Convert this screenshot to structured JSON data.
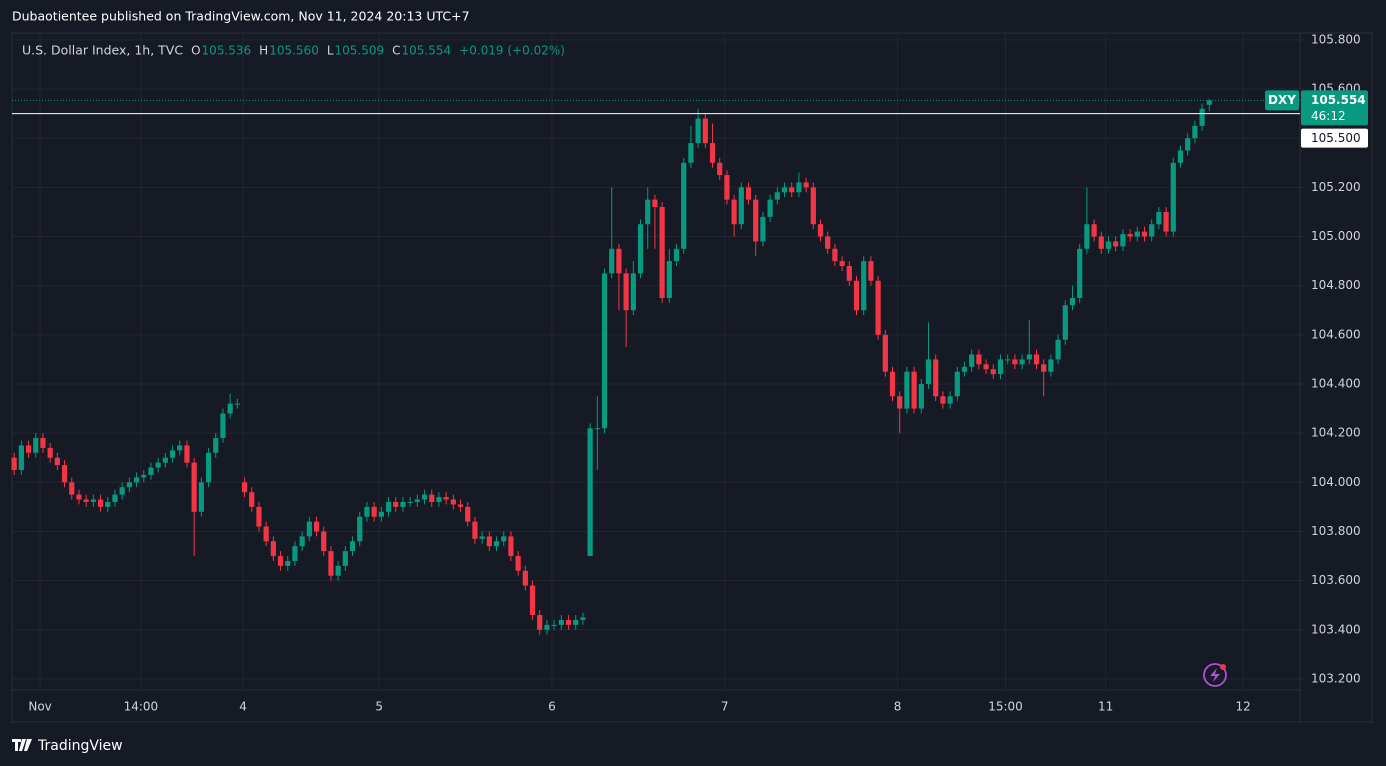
{
  "header": "Dubaotientee published on TradingView.com, Nov 11, 2024 20:13 UTC+7",
  "footer": "TradingView",
  "chart_data": {
    "type": "candlestick",
    "legend": {
      "title": "U.S. Dollar Index, 1h, TVC",
      "o_label": "O",
      "open": "105.536",
      "h_label": "H",
      "high": "105.560",
      "l_label": "L",
      "low": "105.509",
      "c_label": "C",
      "close": "105.554",
      "change": "+0.019 (+0.02%)"
    },
    "up_color": "#089981",
    "down_color": "#f23645",
    "grid": true,
    "ylim": [
      103.155,
      105.828
    ],
    "yticks": [
      {
        "value": 103.2,
        "label": "103.200"
      },
      {
        "value": 103.4,
        "label": "103.400"
      },
      {
        "value": 103.6,
        "label": "103.600"
      },
      {
        "value": 103.8,
        "label": "103.800"
      },
      {
        "value": 104.0,
        "label": "104.000"
      },
      {
        "value": 104.2,
        "label": "104.200"
      },
      {
        "value": 104.4,
        "label": "104.400"
      },
      {
        "value": 104.6,
        "label": "104.600"
      },
      {
        "value": 104.8,
        "label": "104.800"
      },
      {
        "value": 105.0,
        "label": "105.000"
      },
      {
        "value": 105.2,
        "label": "105.200"
      },
      {
        "value": 105.4,
        "label": "105.400"
      },
      {
        "value": 105.6,
        "label": "105.600"
      },
      {
        "value": 105.8,
        "label": "105.800"
      }
    ],
    "xlim": [
      -0.3,
      178.6
    ],
    "xticks": [
      {
        "value": 3.6,
        "label": "Nov"
      },
      {
        "value": 17.6,
        "label": "14:00"
      },
      {
        "value": 31.8,
        "label": "4"
      },
      {
        "value": 50.7,
        "label": "5"
      },
      {
        "value": 74.7,
        "label": "6"
      },
      {
        "value": 98.7,
        "label": "7"
      },
      {
        "value": 122.7,
        "label": "8"
      },
      {
        "value": 137.7,
        "label": "15:00"
      },
      {
        "value": 151.6,
        "label": "11"
      },
      {
        "value": 170.7,
        "label": "12"
      }
    ],
    "reference_line": {
      "value": 105.5,
      "label": "105.500"
    },
    "last_price": {
      "symbol": "DXY",
      "label": "105.554",
      "countdown": "46:12"
    },
    "candles": [
      [
        104.1,
        104.12,
        104.03,
        104.05
      ],
      [
        104.05,
        104.17,
        104.03,
        104.15
      ],
      [
        104.15,
        104.17,
        104.1,
        104.12
      ],
      [
        104.12,
        104.2,
        104.1,
        104.18
      ],
      [
        104.18,
        104.2,
        104.12,
        104.14
      ],
      [
        104.14,
        104.16,
        104.08,
        104.1
      ],
      [
        104.1,
        104.12,
        104.05,
        104.07
      ],
      [
        104.07,
        104.09,
        103.98,
        104.0
      ],
      [
        104.0,
        104.02,
        103.93,
        103.95
      ],
      [
        103.95,
        103.97,
        103.91,
        103.93
      ],
      [
        103.93,
        103.95,
        103.9,
        103.92
      ],
      [
        103.92,
        103.95,
        103.9,
        103.93
      ],
      [
        103.93,
        103.95,
        103.88,
        103.9
      ],
      [
        103.9,
        103.94,
        103.88,
        103.92
      ],
      [
        103.92,
        103.97,
        103.9,
        103.95
      ],
      [
        103.95,
        104.0,
        103.93,
        103.98
      ],
      [
        103.98,
        104.02,
        103.96,
        104.0
      ],
      [
        104.0,
        104.04,
        103.98,
        104.02
      ],
      [
        104.02,
        104.05,
        104.0,
        104.03
      ],
      [
        104.03,
        104.08,
        104.01,
        104.06
      ],
      [
        104.06,
        104.1,
        104.04,
        104.08
      ],
      [
        104.08,
        104.12,
        104.06,
        104.1
      ],
      [
        104.1,
        104.15,
        104.08,
        104.13
      ],
      [
        104.13,
        104.17,
        104.11,
        104.15
      ],
      [
        104.15,
        104.17,
        104.06,
        104.08
      ],
      [
        104.08,
        104.1,
        103.7,
        103.88
      ],
      [
        103.88,
        104.02,
        103.86,
        104.0
      ],
      [
        104.0,
        104.14,
        103.98,
        104.12
      ],
      [
        104.12,
        104.2,
        104.1,
        104.18
      ],
      [
        104.18,
        104.3,
        104.16,
        104.28
      ],
      [
        104.28,
        104.36,
        104.26,
        104.32
      ],
      [
        104.32,
        104.34,
        104.3,
        104.32
      ],
      [
        104.0,
        104.02,
        103.94,
        103.96
      ],
      [
        103.96,
        103.98,
        103.88,
        103.9
      ],
      [
        103.9,
        103.92,
        103.8,
        103.82
      ],
      [
        103.82,
        103.84,
        103.74,
        103.76
      ],
      [
        103.76,
        103.78,
        103.68,
        103.7
      ],
      [
        103.7,
        103.72,
        103.64,
        103.66
      ],
      [
        103.66,
        103.7,
        103.64,
        103.68
      ],
      [
        103.68,
        103.76,
        103.66,
        103.74
      ],
      [
        103.74,
        103.8,
        103.72,
        103.78
      ],
      [
        103.78,
        103.86,
        103.76,
        103.84
      ],
      [
        103.84,
        103.86,
        103.78,
        103.8
      ],
      [
        103.8,
        103.82,
        103.7,
        103.72
      ],
      [
        103.72,
        103.74,
        103.6,
        103.62
      ],
      [
        103.62,
        103.68,
        103.6,
        103.66
      ],
      [
        103.66,
        103.74,
        103.64,
        103.72
      ],
      [
        103.72,
        103.78,
        103.7,
        103.76
      ],
      [
        103.76,
        103.88,
        103.74,
        103.86
      ],
      [
        103.86,
        103.92,
        103.84,
        103.9
      ],
      [
        103.9,
        103.92,
        103.84,
        103.86
      ],
      [
        103.86,
        103.9,
        103.84,
        103.88
      ],
      [
        103.88,
        103.94,
        103.86,
        103.92
      ],
      [
        103.92,
        103.94,
        103.88,
        103.9
      ],
      [
        103.9,
        103.94,
        103.88,
        103.92
      ],
      [
        103.92,
        103.94,
        103.9,
        103.92
      ],
      [
        103.92,
        103.95,
        103.9,
        103.93
      ],
      [
        103.93,
        103.97,
        103.91,
        103.95
      ],
      [
        103.95,
        103.97,
        103.9,
        103.92
      ],
      [
        103.92,
        103.96,
        103.9,
        103.94
      ],
      [
        103.94,
        103.96,
        103.91,
        103.93
      ],
      [
        103.93,
        103.95,
        103.89,
        103.91
      ],
      [
        103.91,
        103.93,
        103.88,
        103.9
      ],
      [
        103.9,
        103.92,
        103.82,
        103.84
      ],
      [
        103.84,
        103.86,
        103.75,
        103.77
      ],
      [
        103.77,
        103.8,
        103.75,
        103.78
      ],
      [
        103.78,
        103.8,
        103.72,
        103.74
      ],
      [
        103.74,
        103.78,
        103.72,
        103.76
      ],
      [
        103.76,
        103.8,
        103.74,
        103.78
      ],
      [
        103.78,
        103.8,
        103.68,
        103.7
      ],
      [
        103.7,
        103.72,
        103.62,
        103.64
      ],
      [
        103.64,
        103.66,
        103.56,
        103.58
      ],
      [
        103.58,
        103.6,
        103.44,
        103.46
      ],
      [
        103.46,
        103.48,
        103.38,
        103.4
      ],
      [
        103.4,
        103.44,
        103.38,
        103.42
      ],
      [
        103.42,
        103.44,
        103.4,
        103.42
      ],
      [
        103.42,
        103.46,
        103.4,
        103.44
      ],
      [
        103.44,
        103.46,
        103.4,
        103.42
      ],
      [
        103.42,
        103.46,
        103.4,
        103.44
      ],
      [
        103.44,
        103.47,
        103.42,
        103.45
      ],
      [
        103.7,
        104.24,
        103.7,
        104.22
      ],
      [
        104.22,
        104.35,
        104.05,
        104.22
      ],
      [
        104.22,
        104.87,
        104.2,
        104.85
      ],
      [
        104.85,
        105.2,
        104.83,
        104.95
      ],
      [
        104.95,
        104.97,
        104.7,
        104.85
      ],
      [
        104.85,
        104.87,
        104.55,
        104.7
      ],
      [
        104.7,
        104.9,
        104.68,
        104.85
      ],
      [
        104.85,
        105.07,
        104.83,
        105.05
      ],
      [
        105.05,
        105.2,
        104.95,
        105.15
      ],
      [
        105.15,
        105.17,
        104.95,
        105.12
      ],
      [
        105.12,
        105.14,
        104.73,
        104.75
      ],
      [
        104.75,
        104.95,
        104.73,
        104.9
      ],
      [
        104.9,
        104.97,
        104.88,
        104.95
      ],
      [
        104.95,
        105.32,
        104.93,
        105.3
      ],
      [
        105.3,
        105.45,
        105.28,
        105.38
      ],
      [
        105.38,
        105.52,
        105.36,
        105.48
      ],
      [
        105.48,
        105.5,
        105.36,
        105.38
      ],
      [
        105.38,
        105.46,
        105.28,
        105.3
      ],
      [
        105.3,
        105.32,
        105.23,
        105.25
      ],
      [
        105.25,
        105.27,
        105.13,
        105.15
      ],
      [
        105.15,
        105.17,
        105.0,
        105.05
      ],
      [
        105.05,
        105.22,
        105.03,
        105.2
      ],
      [
        105.2,
        105.22,
        105.13,
        105.15
      ],
      [
        105.15,
        105.17,
        104.92,
        104.98
      ],
      [
        104.98,
        105.1,
        104.96,
        105.08
      ],
      [
        105.08,
        105.17,
        105.06,
        105.15
      ],
      [
        105.15,
        105.2,
        105.13,
        105.18
      ],
      [
        105.18,
        105.22,
        105.16,
        105.2
      ],
      [
        105.2,
        105.22,
        105.16,
        105.18
      ],
      [
        105.18,
        105.26,
        105.16,
        105.22
      ],
      [
        105.22,
        105.24,
        105.18,
        105.2
      ],
      [
        105.2,
        105.22,
        105.03,
        105.05
      ],
      [
        105.05,
        105.07,
        104.98,
        105.0
      ],
      [
        105.0,
        105.02,
        104.93,
        104.95
      ],
      [
        104.95,
        104.97,
        104.88,
        104.9
      ],
      [
        104.9,
        104.92,
        104.86,
        104.88
      ],
      [
        104.88,
        104.9,
        104.8,
        104.82
      ],
      [
        104.82,
        104.84,
        104.68,
        104.7
      ],
      [
        104.7,
        104.92,
        104.68,
        104.9
      ],
      [
        104.9,
        104.92,
        104.8,
        104.82
      ],
      [
        104.82,
        104.84,
        104.58,
        104.6
      ],
      [
        104.6,
        104.62,
        104.43,
        104.45
      ],
      [
        104.45,
        104.47,
        104.33,
        104.35
      ],
      [
        104.35,
        104.37,
        104.2,
        104.3
      ],
      [
        104.3,
        104.47,
        104.28,
        104.45
      ],
      [
        104.45,
        104.47,
        104.28,
        104.3
      ],
      [
        104.3,
        104.42,
        104.28,
        104.4
      ],
      [
        104.4,
        104.65,
        104.38,
        104.5
      ],
      [
        104.5,
        104.52,
        104.33,
        104.35
      ],
      [
        104.35,
        104.37,
        104.3,
        104.32
      ],
      [
        104.32,
        104.37,
        104.3,
        104.35
      ],
      [
        104.35,
        104.47,
        104.33,
        104.45
      ],
      [
        104.45,
        104.49,
        104.43,
        104.47
      ],
      [
        104.47,
        104.54,
        104.45,
        104.52
      ],
      [
        104.52,
        104.54,
        104.46,
        104.48
      ],
      [
        104.48,
        104.5,
        104.44,
        104.46
      ],
      [
        104.46,
        104.48,
        104.42,
        104.44
      ],
      [
        104.44,
        104.52,
        104.42,
        104.5
      ],
      [
        104.5,
        104.52,
        104.48,
        104.5
      ],
      [
        104.5,
        104.52,
        104.46,
        104.48
      ],
      [
        104.48,
        104.52,
        104.46,
        104.5
      ],
      [
        104.5,
        104.66,
        104.48,
        104.52
      ],
      [
        104.52,
        104.54,
        104.46,
        104.48
      ],
      [
        104.48,
        104.5,
        104.35,
        104.45
      ],
      [
        104.45,
        104.52,
        104.43,
        104.5
      ],
      [
        104.5,
        104.6,
        104.48,
        104.58
      ],
      [
        104.58,
        104.74,
        104.56,
        104.72
      ],
      [
        104.72,
        104.8,
        104.7,
        104.75
      ],
      [
        104.75,
        104.97,
        104.73,
        104.95
      ],
      [
        104.95,
        105.2,
        104.93,
        105.05
      ],
      [
        105.05,
        105.07,
        104.98,
        105.0
      ],
      [
        105.0,
        105.02,
        104.93,
        104.95
      ],
      [
        104.95,
        105.0,
        104.93,
        104.98
      ],
      [
        104.98,
        105.0,
        104.94,
        104.96
      ],
      [
        104.96,
        105.03,
        104.94,
        105.01
      ],
      [
        105.01,
        105.03,
        104.98,
        105.0
      ],
      [
        105.0,
        105.04,
        104.98,
        105.02
      ],
      [
        105.02,
        105.04,
        104.98,
        105.0
      ],
      [
        105.0,
        105.07,
        104.98,
        105.05
      ],
      [
        105.05,
        105.12,
        105.03,
        105.1
      ],
      [
        105.1,
        105.12,
        105.0,
        105.02
      ],
      [
        105.02,
        105.32,
        105.0,
        105.3
      ],
      [
        105.3,
        105.37,
        105.28,
        105.35
      ],
      [
        105.35,
        105.42,
        105.33,
        105.4
      ],
      [
        105.4,
        105.47,
        105.38,
        105.45
      ],
      [
        105.45,
        105.54,
        105.43,
        105.52
      ],
      [
        105.536,
        105.56,
        105.509,
        105.554
      ]
    ]
  }
}
